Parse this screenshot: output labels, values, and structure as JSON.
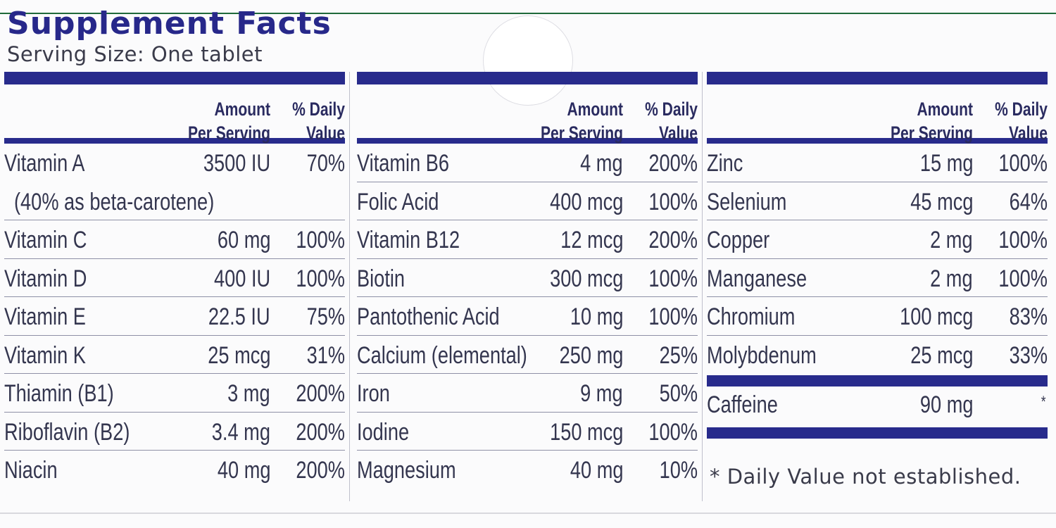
{
  "title": "Supplement Facts",
  "serving": "Serving Size: One tablet",
  "headers": {
    "amount_line1": "Amount",
    "amount_line2": "Per Serving",
    "dv_line1": "% Daily",
    "dv_line2": "Value"
  },
  "columns": [
    {
      "rows": [
        {
          "name": "Vitamin A",
          "amount": "3500 IU",
          "dv": "70%"
        },
        {
          "sub": "(40% as beta-carotene)"
        },
        {
          "name": "Vitamin C",
          "amount": "60 mg",
          "dv": "100%"
        },
        {
          "name": "Vitamin D",
          "amount": "400 IU",
          "dv": "100%"
        },
        {
          "name": "Vitamin E",
          "amount": "22.5 IU",
          "dv": "75%"
        },
        {
          "name": "Vitamin K",
          "amount": "25 mcg",
          "dv": "31%"
        },
        {
          "name": "Thiamin (B1)",
          "amount": "3 mg",
          "dv": "200%"
        },
        {
          "name": "Riboflavin (B2)",
          "amount": "3.4 mg",
          "dv": "200%"
        },
        {
          "name": "Niacin",
          "amount": "40 mg",
          "dv": "200%"
        }
      ]
    },
    {
      "rows": [
        {
          "name": "Vitamin B6",
          "amount": "4 mg",
          "dv": "200%"
        },
        {
          "name": "Folic Acid",
          "amount": "400 mcg",
          "dv": "100%"
        },
        {
          "name": "Vitamin B12",
          "amount": "12 mcg",
          "dv": "200%"
        },
        {
          "name": "Biotin",
          "amount": "300 mcg",
          "dv": "100%"
        },
        {
          "name": "Pantothenic Acid",
          "amount": "10 mg",
          "dv": "100%"
        },
        {
          "name": "Calcium (elemental)",
          "amount": "250 mg",
          "dv": "25%"
        },
        {
          "name": "Iron",
          "amount": "9 mg",
          "dv": "50%"
        },
        {
          "name": "Iodine",
          "amount": "150 mcg",
          "dv": "100%"
        },
        {
          "name": "Magnesium",
          "amount": "40 mg",
          "dv": "10%"
        }
      ]
    },
    {
      "rows": [
        {
          "name": "Zinc",
          "amount": "15 mg",
          "dv": "100%"
        },
        {
          "name": "Selenium",
          "amount": "45 mcg",
          "dv": "64%"
        },
        {
          "name": "Copper",
          "amount": "2 mg",
          "dv": "100%"
        },
        {
          "name": "Manganese",
          "amount": "2 mg",
          "dv": "100%"
        },
        {
          "name": "Chromium",
          "amount": "100 mcg",
          "dv": "83%"
        },
        {
          "name": "Molybdenum",
          "amount": "25 mcg",
          "dv": "33%"
        }
      ]
    }
  ],
  "caffeine": {
    "name": "Caffeine",
    "amount": "90 mg",
    "dv": "*"
  },
  "footnote": "* Daily Value not established.",
  "colors": {
    "brand": "#282b8c",
    "text": "#34364f"
  }
}
